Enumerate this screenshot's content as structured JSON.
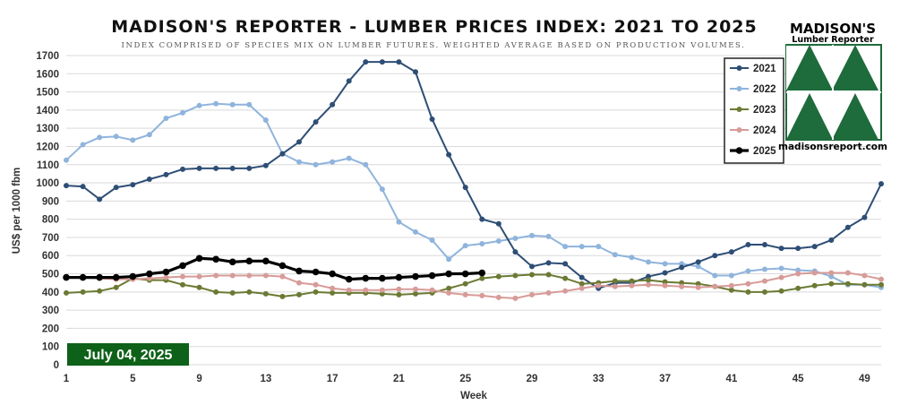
{
  "chart_data": {
    "type": "line",
    "title": "MADISON'S REPORTER - LUMBER PRICES INDEX: 2021 TO 2025",
    "subtitle": "INDEX COMPRISED OF SPECIES MIX ON LUMBER FUTURES. WEIGHTED AVERAGE BASED ON PRODUCTION VOLUMES.",
    "xlabel": "Week",
    "ylabel": "US$ per 1000 fbm",
    "xlim": [
      1,
      50
    ],
    "ylim": [
      0,
      1700
    ],
    "xticks": [
      1,
      5,
      9,
      13,
      17,
      21,
      25,
      29,
      33,
      37,
      41,
      45,
      49
    ],
    "yticks": [
      0,
      100,
      200,
      300,
      400,
      500,
      600,
      700,
      800,
      900,
      1000,
      1100,
      1200,
      1300,
      1400,
      1500,
      1600,
      1700
    ],
    "grid": true,
    "legend_position": "top-right",
    "series": [
      {
        "name": "2021",
        "color": "#2e4e75",
        "start_week": 1,
        "values": [
          985,
          980,
          910,
          975,
          990,
          1020,
          1045,
          1075,
          1080,
          1080,
          1080,
          1080,
          1095,
          1160,
          1225,
          1335,
          1430,
          1560,
          1665,
          1665,
          1665,
          1610,
          1350,
          1155,
          975,
          800,
          775,
          620,
          540,
          560,
          555,
          480,
          420,
          450,
          450,
          485,
          505,
          535,
          565,
          600,
          620,
          660,
          660,
          640,
          640,
          650,
          685,
          755,
          810,
          995
        ]
      },
      {
        "name": "2022",
        "color": "#8fb4dc",
        "start_week": 1,
        "values": [
          1125,
          1210,
          1250,
          1255,
          1235,
          1265,
          1355,
          1385,
          1425,
          1435,
          1430,
          1430,
          1345,
          1160,
          1115,
          1100,
          1115,
          1135,
          1100,
          965,
          785,
          730,
          685,
          580,
          655,
          665,
          680,
          695,
          710,
          705,
          650,
          650,
          650,
          605,
          590,
          565,
          555,
          555,
          540,
          490,
          490,
          515,
          525,
          530,
          520,
          515,
          485,
          440,
          440,
          425
        ]
      },
      {
        "name": "2023",
        "color": "#6b7a33",
        "start_week": 1,
        "values": [
          395,
          400,
          405,
          425,
          475,
          465,
          465,
          440,
          425,
          400,
          395,
          400,
          390,
          375,
          385,
          400,
          395,
          395,
          395,
          390,
          385,
          390,
          395,
          420,
          445,
          475,
          485,
          490,
          495,
          495,
          475,
          445,
          450,
          460,
          460,
          465,
          455,
          450,
          445,
          430,
          410,
          400,
          400,
          405,
          420,
          435,
          445,
          445,
          440,
          440
        ]
      },
      {
        "name": "2024",
        "color": "#d79b98",
        "start_week": 1,
        "values": [
          480,
          480,
          475,
          470,
          470,
          475,
          480,
          485,
          485,
          490,
          490,
          490,
          490,
          485,
          450,
          440,
          420,
          410,
          410,
          410,
          415,
          415,
          410,
          395,
          385,
          380,
          370,
          365,
          385,
          395,
          405,
          420,
          435,
          430,
          435,
          440,
          435,
          430,
          425,
          430,
          435,
          445,
          460,
          480,
          500,
          505,
          505,
          505,
          490,
          470
        ]
      },
      {
        "name": "2025",
        "color": "#000000",
        "start_week": 1,
        "values": [
          480,
          480,
          480,
          480,
          485,
          500,
          510,
          545,
          585,
          580,
          565,
          570,
          570,
          545,
          515,
          510,
          500,
          470,
          475,
          475,
          480,
          485,
          490,
          500,
          500,
          505
        ]
      }
    ]
  },
  "logo": {
    "line1": "MADISON'S",
    "line2": "Lumber Reporter",
    "url": "madisonsreport.com",
    "color": "#1e6b3c"
  },
  "date_badge": {
    "text": "July 04, 2025",
    "color": "#0d6118"
  }
}
